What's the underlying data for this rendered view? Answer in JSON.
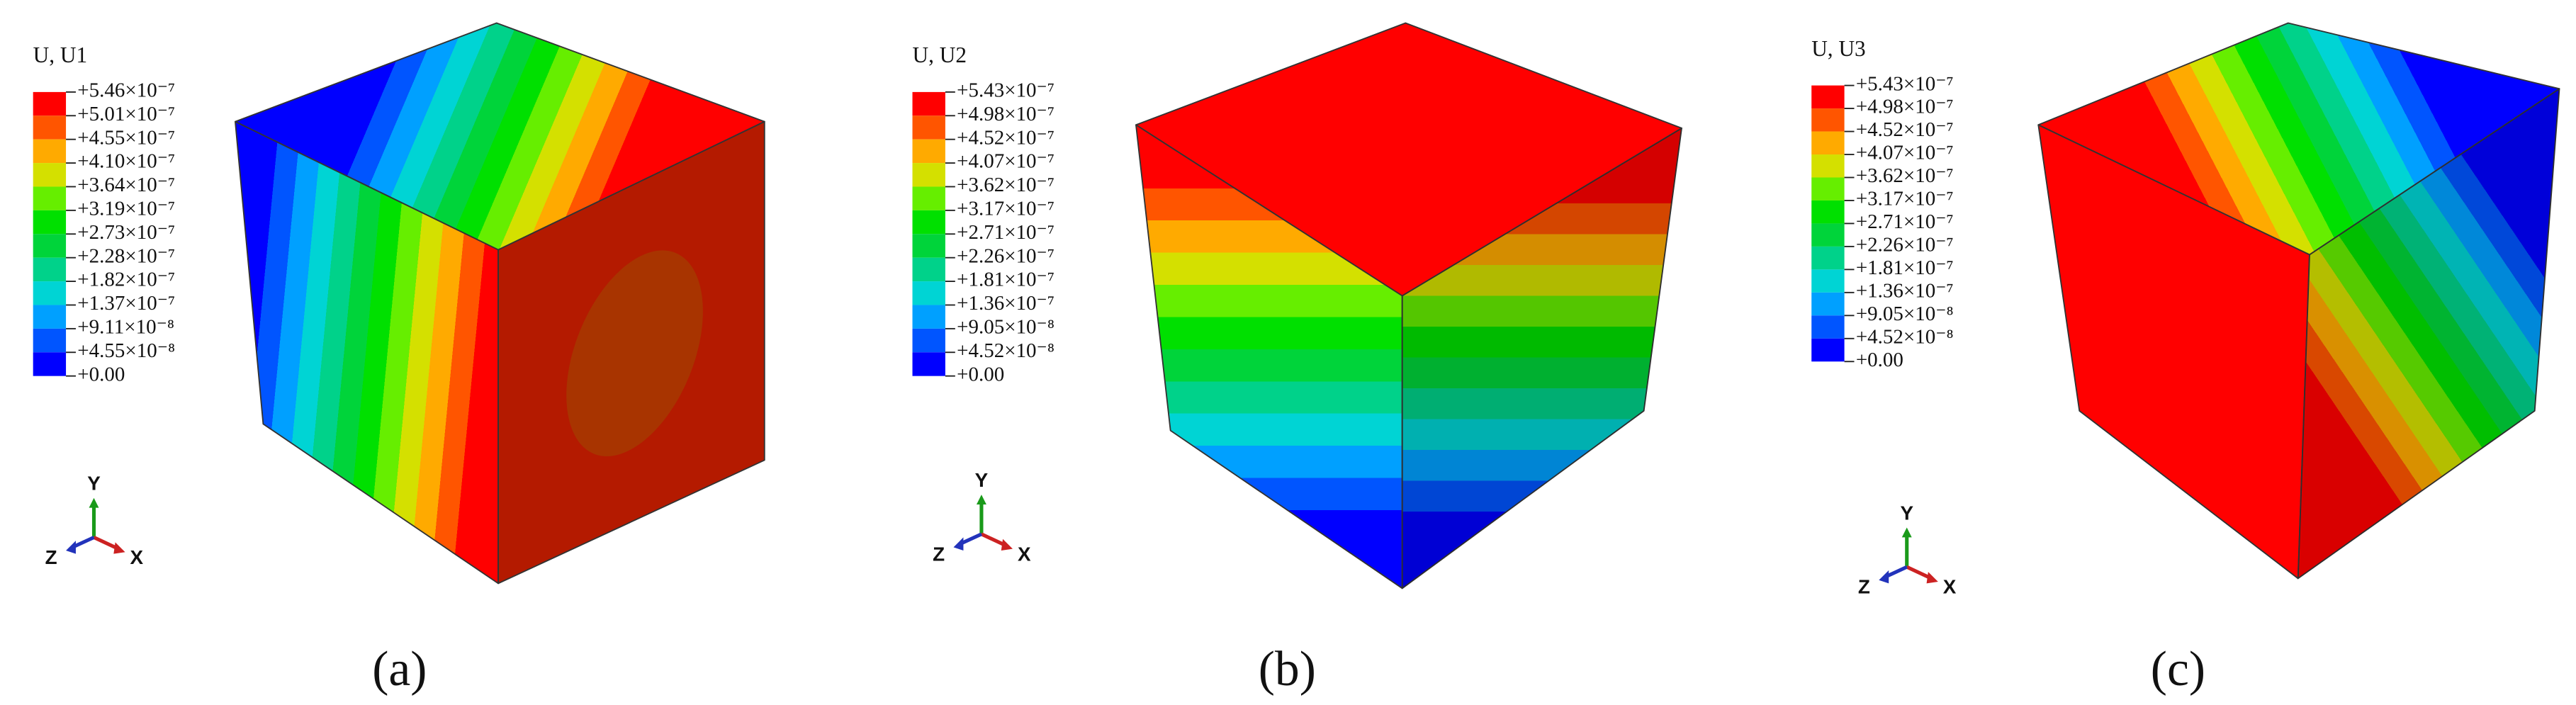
{
  "legend_colors": [
    "#ff0000",
    "#ff5500",
    "#ffaa00",
    "#d4e000",
    "#66ee00",
    "#00e000",
    "#00d43a",
    "#00d28a",
    "#00d4d4",
    "#00a0ff",
    "#0055ff",
    "#0000ff"
  ],
  "panels": [
    {
      "legend_title": "U, U1",
      "legend_labels": [
        "+5.46×10⁻⁷",
        "+5.01×10⁻⁷",
        "+4.55×10⁻⁷",
        "+4.10×10⁻⁷",
        "+3.64×10⁻⁷",
        "+3.19×10⁻⁷",
        "+2.73×10⁻⁷",
        "+2.28×10⁻⁷",
        "+1.82×10⁻⁷",
        "+1.37×10⁻⁷",
        "+9.11×10⁻⁸",
        "+4.55×10⁻⁸",
        "+0.00"
      ],
      "axes": {
        "y": "Y",
        "z": "Z",
        "x": "X"
      },
      "caption": "(a)"
    },
    {
      "legend_title": "U, U2",
      "legend_labels": [
        "+5.43×10⁻⁷",
        "+4.98×10⁻⁷",
        "+4.52×10⁻⁷",
        "+4.07×10⁻⁷",
        "+3.62×10⁻⁷",
        "+3.17×10⁻⁷",
        "+2.71×10⁻⁷",
        "+2.26×10⁻⁷",
        "+1.81×10⁻⁷",
        "+1.36×10⁻⁷",
        "+9.05×10⁻⁸",
        "+4.52×10⁻⁸",
        "+0.00"
      ],
      "axes": {
        "y": "Y",
        "z": "Z",
        "x": "X"
      },
      "caption": "(b)"
    },
    {
      "legend_title": "U, U3",
      "legend_labels": [
        "+5.43×10⁻⁷",
        "+4.98×10⁻⁷",
        "+4.52×10⁻⁷",
        "+4.07×10⁻⁷",
        "+3.62×10⁻⁷",
        "+3.17×10⁻⁷",
        "+2.71×10⁻⁷",
        "+2.26×10⁻⁷",
        "+1.81×10⁻⁷",
        "+1.36×10⁻⁷",
        "+9.05×10⁻⁸",
        "+4.52×10⁻⁸",
        "+0.00"
      ],
      "axes": {
        "y": "Y",
        "z": "Z",
        "x": "X"
      },
      "caption": "(c)"
    }
  ]
}
